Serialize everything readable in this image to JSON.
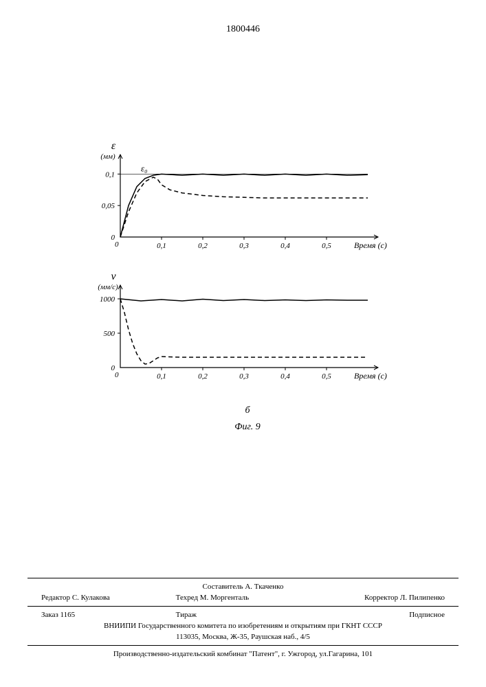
{
  "page_number": "1800446",
  "chart_top": {
    "type": "line",
    "ylabel": "ε",
    "yunit": "(мм)",
    "annotation": "ε₀",
    "xlabel": "Время (с)",
    "xticks": [
      "0",
      "0,1",
      "0,2",
      "0,3",
      "0,4",
      "0,5"
    ],
    "yticks": [
      "0",
      "0,05",
      "0,1"
    ],
    "xlim": [
      0,
      0.6
    ],
    "ylim": [
      0,
      0.12
    ],
    "series": [
      {
        "name": "solid",
        "dash": "none",
        "color": "#000000",
        "width": 1.5,
        "points": [
          [
            0,
            0
          ],
          [
            0.02,
            0.05
          ],
          [
            0.04,
            0.08
          ],
          [
            0.06,
            0.093
          ],
          [
            0.08,
            0.098
          ],
          [
            0.1,
            0.1
          ],
          [
            0.15,
            0.098
          ],
          [
            0.2,
            0.1
          ],
          [
            0.25,
            0.098
          ],
          [
            0.3,
            0.1
          ],
          [
            0.35,
            0.098
          ],
          [
            0.4,
            0.1
          ],
          [
            0.45,
            0.098
          ],
          [
            0.5,
            0.1
          ],
          [
            0.55,
            0.098
          ],
          [
            0.6,
            0.099
          ]
        ]
      },
      {
        "name": "dashed",
        "dash": "6,4",
        "color": "#000000",
        "width": 1.5,
        "points": [
          [
            0,
            0
          ],
          [
            0.02,
            0.04
          ],
          [
            0.04,
            0.07
          ],
          [
            0.06,
            0.088
          ],
          [
            0.08,
            0.095
          ],
          [
            0.09,
            0.092
          ],
          [
            0.1,
            0.083
          ],
          [
            0.12,
            0.075
          ],
          [
            0.15,
            0.07
          ],
          [
            0.2,
            0.066
          ],
          [
            0.25,
            0.064
          ],
          [
            0.3,
            0.063
          ],
          [
            0.35,
            0.062
          ],
          [
            0.4,
            0.062
          ],
          [
            0.5,
            0.062
          ],
          [
            0.6,
            0.062
          ]
        ]
      }
    ],
    "ref_line_y": 0.1,
    "background_color": "#ffffff",
    "axis_color": "#000000"
  },
  "chart_bottom": {
    "type": "line",
    "ylabel": "v",
    "yunit": "(мм/с)",
    "xlabel": "Время (с)",
    "xticks": [
      "0",
      "0,1",
      "0,2",
      "0,3",
      "0,4",
      "0,5"
    ],
    "yticks": [
      "0",
      "500",
      "1000"
    ],
    "xlim": [
      0,
      0.6
    ],
    "ylim": [
      0,
      1100
    ],
    "series": [
      {
        "name": "solid",
        "dash": "none",
        "color": "#000000",
        "width": 1.5,
        "points": [
          [
            0,
            1000
          ],
          [
            0.05,
            970
          ],
          [
            0.1,
            990
          ],
          [
            0.15,
            970
          ],
          [
            0.2,
            995
          ],
          [
            0.25,
            975
          ],
          [
            0.3,
            990
          ],
          [
            0.35,
            975
          ],
          [
            0.4,
            985
          ],
          [
            0.45,
            975
          ],
          [
            0.5,
            985
          ],
          [
            0.55,
            980
          ],
          [
            0.6,
            980
          ]
        ]
      },
      {
        "name": "dashed",
        "dash": "6,4",
        "color": "#000000",
        "width": 1.5,
        "points": [
          [
            0,
            1000
          ],
          [
            0.01,
            800
          ],
          [
            0.02,
            550
          ],
          [
            0.03,
            350
          ],
          [
            0.04,
            200
          ],
          [
            0.05,
            100
          ],
          [
            0.06,
            50
          ],
          [
            0.07,
            60
          ],
          [
            0.08,
            100
          ],
          [
            0.09,
            140
          ],
          [
            0.1,
            160
          ],
          [
            0.12,
            155
          ],
          [
            0.15,
            150
          ],
          [
            0.2,
            150
          ],
          [
            0.3,
            150
          ],
          [
            0.4,
            150
          ],
          [
            0.5,
            150
          ],
          [
            0.6,
            150
          ]
        ]
      }
    ],
    "background_color": "#ffffff",
    "axis_color": "#000000"
  },
  "sub_label": "б",
  "figure_label": "Фиг. 9",
  "footer": {
    "compiler": "Составитель А. Ткаченко",
    "editor_label": "Редактор",
    "editor": "С. Кулакова",
    "techred_label": "Техред",
    "techred": "М. Моргенталь",
    "corrector_label": "Корректор",
    "corrector": "Л. Пилипенко",
    "order": "Заказ 1165",
    "tirazh": "Тираж",
    "subscription": "Подписное",
    "org1": "ВНИИПИ Государственного комитета по изобретениям и открытиям при ГКНТ СССР",
    "org2": "113035, Москва, Ж-35, Раушская наб., 4/5",
    "publisher": "Производственно-издательский комбинат \"Патент\", г. Ужгород, ул.Гагарина, 101"
  }
}
